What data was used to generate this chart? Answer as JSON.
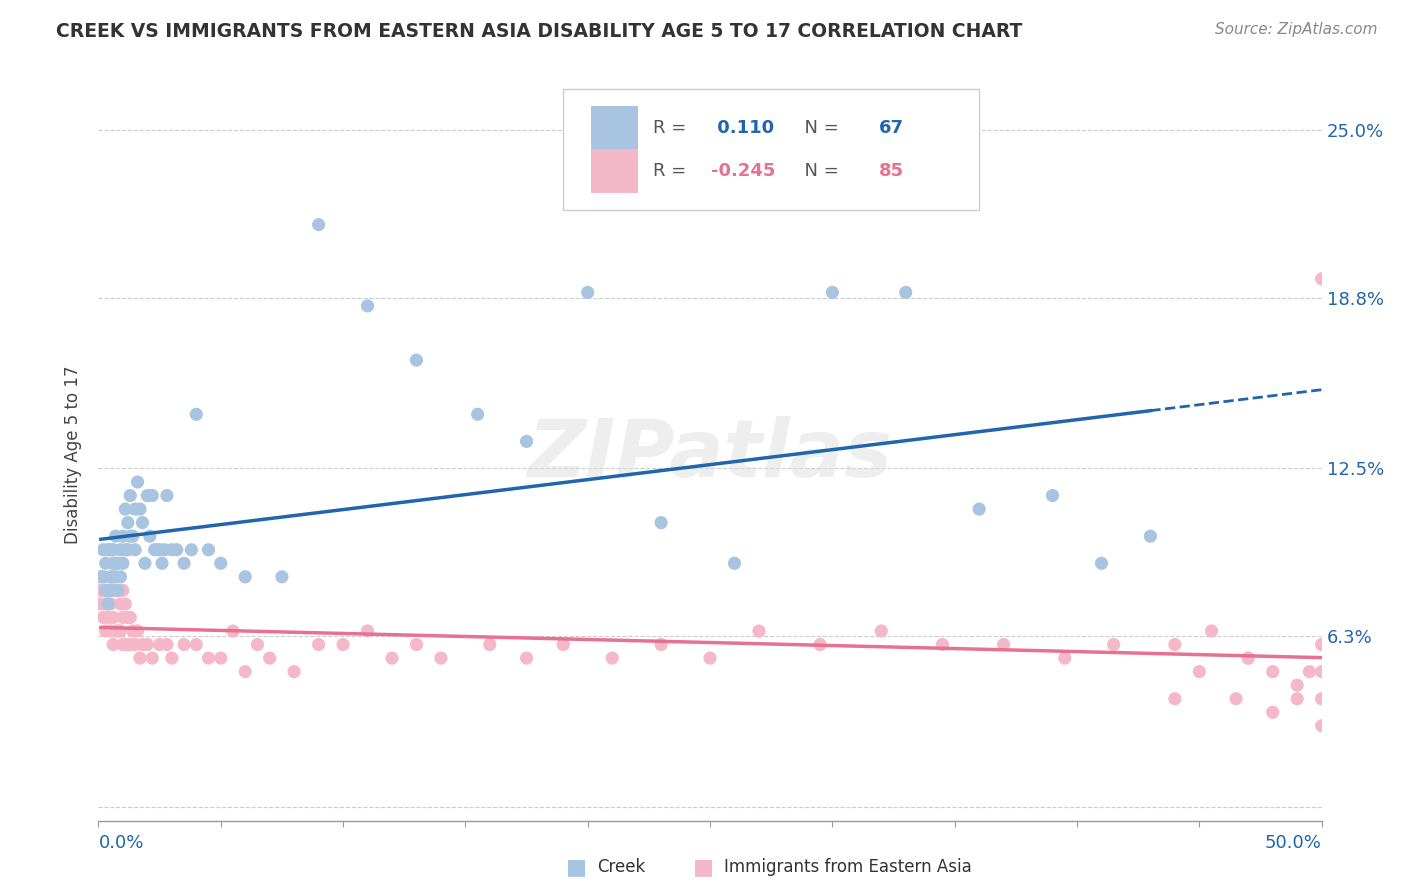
{
  "title": "CREEK VS IMMIGRANTS FROM EASTERN ASIA DISABILITY AGE 5 TO 17 CORRELATION CHART",
  "source": "Source: ZipAtlas.com",
  "ylabel": "Disability Age 5 to 17",
  "xlim": [
    0.0,
    0.5
  ],
  "ylim": [
    -0.005,
    0.265
  ],
  "creek_R": 0.11,
  "creek_N": 67,
  "immigrants_R": -0.245,
  "immigrants_N": 85,
  "creek_color": "#a8c4e0",
  "creek_line_color": "#2166ac",
  "immigrants_color": "#f4b8c8",
  "immigrants_line_color": "#e87090",
  "watermark": "ZIPatlas",
  "ytick_vals": [
    0.0,
    0.063,
    0.125,
    0.188,
    0.25
  ],
  "ytick_labels": [
    "",
    "6.3%",
    "12.5%",
    "18.8%",
    "25.0%"
  ],
  "creek_scatter_x": [
    0.001,
    0.002,
    0.002,
    0.003,
    0.003,
    0.004,
    0.004,
    0.005,
    0.005,
    0.005,
    0.006,
    0.006,
    0.006,
    0.007,
    0.007,
    0.007,
    0.008,
    0.008,
    0.009,
    0.009,
    0.01,
    0.01,
    0.011,
    0.011,
    0.012,
    0.012,
    0.013,
    0.013,
    0.014,
    0.015,
    0.015,
    0.016,
    0.017,
    0.018,
    0.019,
    0.02,
    0.021,
    0.022,
    0.023,
    0.024,
    0.025,
    0.026,
    0.027,
    0.028,
    0.03,
    0.032,
    0.035,
    0.038,
    0.04,
    0.045,
    0.05,
    0.06,
    0.075,
    0.09,
    0.11,
    0.13,
    0.155,
    0.175,
    0.2,
    0.23,
    0.26,
    0.3,
    0.33,
    0.36,
    0.39,
    0.41,
    0.43
  ],
  "creek_scatter_y": [
    0.085,
    0.085,
    0.095,
    0.08,
    0.09,
    0.075,
    0.095,
    0.085,
    0.08,
    0.095,
    0.09,
    0.085,
    0.095,
    0.09,
    0.085,
    0.1,
    0.09,
    0.08,
    0.095,
    0.085,
    0.1,
    0.09,
    0.11,
    0.095,
    0.105,
    0.095,
    0.115,
    0.1,
    0.1,
    0.11,
    0.095,
    0.12,
    0.11,
    0.105,
    0.09,
    0.115,
    0.1,
    0.115,
    0.095,
    0.095,
    0.095,
    0.09,
    0.095,
    0.115,
    0.095,
    0.095,
    0.09,
    0.095,
    0.145,
    0.095,
    0.09,
    0.085,
    0.085,
    0.215,
    0.185,
    0.165,
    0.145,
    0.135,
    0.19,
    0.105,
    0.09,
    0.19,
    0.19,
    0.11,
    0.115,
    0.09,
    0.1
  ],
  "immigrants_scatter_x": [
    0.001,
    0.001,
    0.002,
    0.002,
    0.003,
    0.003,
    0.003,
    0.004,
    0.004,
    0.005,
    0.005,
    0.005,
    0.006,
    0.006,
    0.006,
    0.007,
    0.007,
    0.008,
    0.008,
    0.009,
    0.009,
    0.01,
    0.01,
    0.01,
    0.011,
    0.011,
    0.012,
    0.012,
    0.013,
    0.013,
    0.014,
    0.015,
    0.016,
    0.017,
    0.018,
    0.02,
    0.022,
    0.025,
    0.028,
    0.03,
    0.035,
    0.04,
    0.045,
    0.05,
    0.055,
    0.06,
    0.065,
    0.07,
    0.08,
    0.09,
    0.1,
    0.11,
    0.12,
    0.13,
    0.14,
    0.16,
    0.175,
    0.19,
    0.21,
    0.23,
    0.25,
    0.27,
    0.295,
    0.32,
    0.345,
    0.37,
    0.395,
    0.415,
    0.44,
    0.455,
    0.47,
    0.48,
    0.49,
    0.495,
    0.5,
    0.5,
    0.5,
    0.5,
    0.49,
    0.48,
    0.47,
    0.465,
    0.45,
    0.44,
    0.5
  ],
  "immigrants_scatter_y": [
    0.08,
    0.075,
    0.085,
    0.07,
    0.08,
    0.075,
    0.065,
    0.08,
    0.07,
    0.085,
    0.075,
    0.065,
    0.08,
    0.07,
    0.06,
    0.08,
    0.065,
    0.08,
    0.065,
    0.075,
    0.065,
    0.08,
    0.07,
    0.06,
    0.075,
    0.06,
    0.07,
    0.06,
    0.07,
    0.06,
    0.065,
    0.06,
    0.065,
    0.055,
    0.06,
    0.06,
    0.055,
    0.06,
    0.06,
    0.055,
    0.06,
    0.06,
    0.055,
    0.055,
    0.065,
    0.05,
    0.06,
    0.055,
    0.05,
    0.06,
    0.06,
    0.065,
    0.055,
    0.06,
    0.055,
    0.06,
    0.055,
    0.06,
    0.055,
    0.06,
    0.055,
    0.065,
    0.06,
    0.065,
    0.06,
    0.06,
    0.055,
    0.06,
    0.06,
    0.065,
    0.055,
    0.05,
    0.045,
    0.05,
    0.06,
    0.05,
    0.04,
    0.03,
    0.04,
    0.035,
    0.055,
    0.04,
    0.05,
    0.04,
    0.195
  ]
}
